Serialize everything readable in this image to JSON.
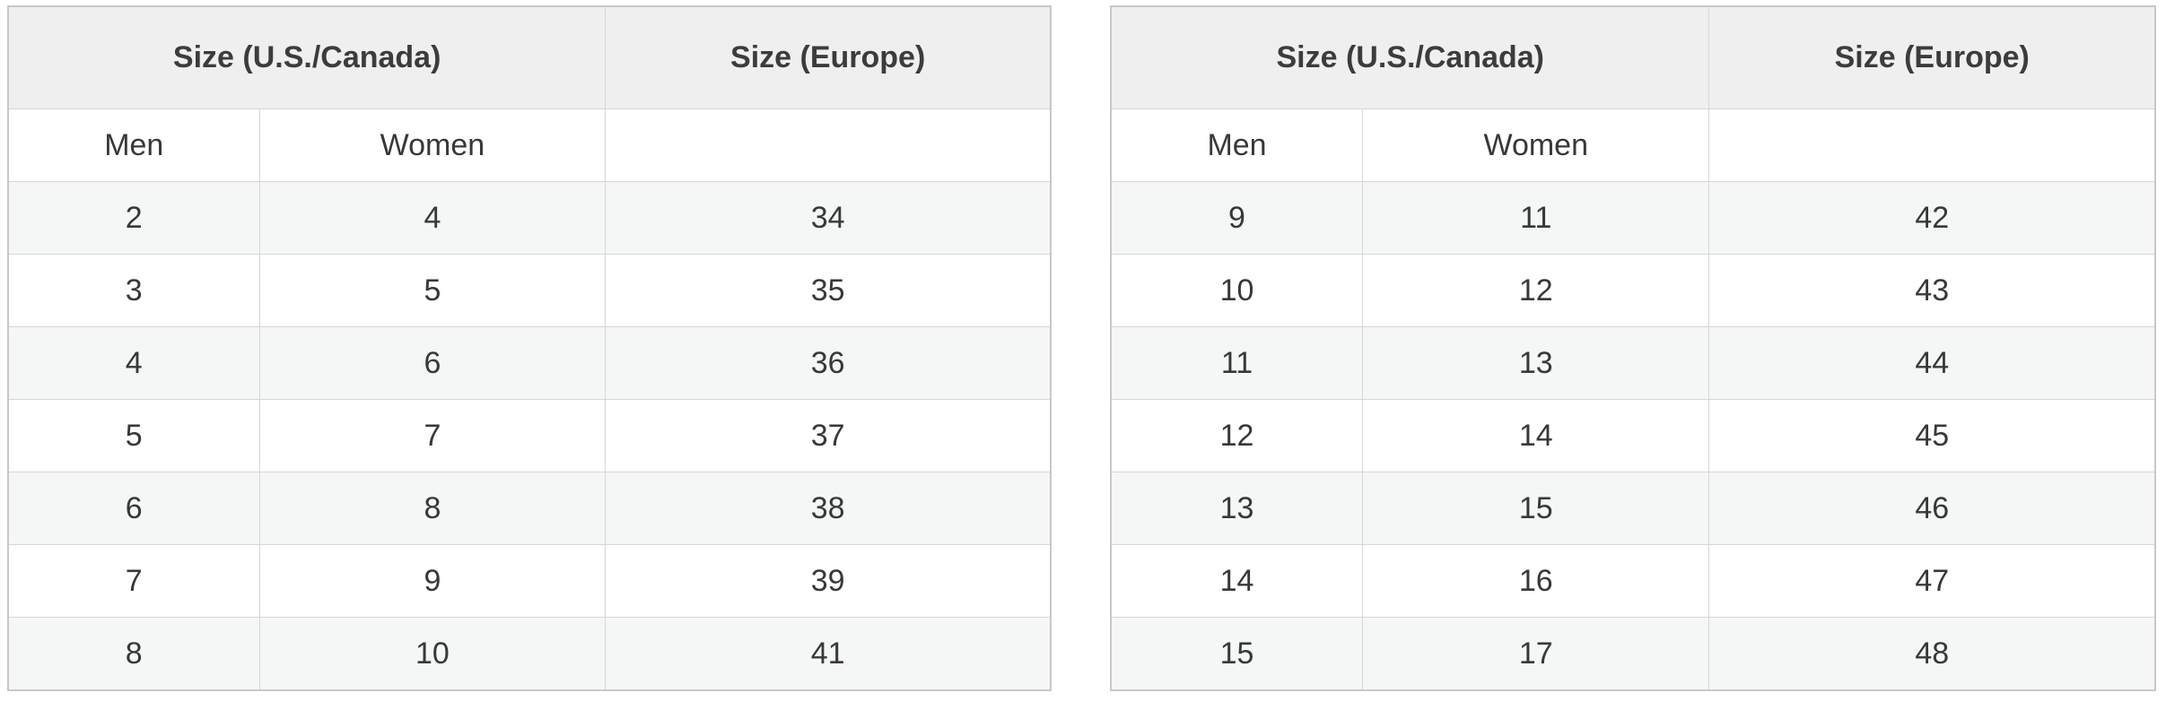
{
  "colors": {
    "page_background": "#ffffff",
    "header_background": "#efefef",
    "stripe_row_background": "#f5f6f6",
    "outer_border": "#c8c8c8",
    "inner_border": "#d6d6d6",
    "text": "#37383a"
  },
  "tables": [
    {
      "header": {
        "us_canada": "Size (U.S./Canada)",
        "europe": "Size (Europe)"
      },
      "subheader": {
        "men": "Men",
        "women": "Women",
        "europe": ""
      },
      "rows": [
        {
          "men": "2",
          "women": "4",
          "europe": "34"
        },
        {
          "men": "3",
          "women": "5",
          "europe": "35"
        },
        {
          "men": "4",
          "women": "6",
          "europe": "36"
        },
        {
          "men": "5",
          "women": "7",
          "europe": "37"
        },
        {
          "men": "6",
          "women": "8",
          "europe": "38"
        },
        {
          "men": "7",
          "women": "9",
          "europe": "39"
        },
        {
          "men": "8",
          "women": "10",
          "europe": "41"
        }
      ]
    },
    {
      "header": {
        "us_canada": "Size (U.S./Canada)",
        "europe": "Size (Europe)"
      },
      "subheader": {
        "men": "Men",
        "women": "Women",
        "europe": ""
      },
      "rows": [
        {
          "men": "9",
          "women": "11",
          "europe": "42"
        },
        {
          "men": "10",
          "women": "12",
          "europe": "43"
        },
        {
          "men": "11",
          "women": "13",
          "europe": "44"
        },
        {
          "men": "12",
          "women": "14",
          "europe": "45"
        },
        {
          "men": "13",
          "women": "15",
          "europe": "46"
        },
        {
          "men": "14",
          "women": "16",
          "europe": "47"
        },
        {
          "men": "15",
          "women": "17",
          "europe": "48"
        }
      ]
    }
  ],
  "chart_data": [
    {
      "type": "table",
      "title": "Shoe size conversion (left table)",
      "columns": [
        "Size (U.S./Canada) Men",
        "Size (U.S./Canada) Women",
        "Size (Europe)"
      ],
      "rows": [
        [
          2,
          4,
          34
        ],
        [
          3,
          5,
          35
        ],
        [
          4,
          6,
          36
        ],
        [
          5,
          7,
          37
        ],
        [
          6,
          8,
          38
        ],
        [
          7,
          9,
          39
        ],
        [
          8,
          10,
          41
        ]
      ]
    },
    {
      "type": "table",
      "title": "Shoe size conversion (right table)",
      "columns": [
        "Size (U.S./Canada) Men",
        "Size (U.S./Canada) Women",
        "Size (Europe)"
      ],
      "rows": [
        [
          9,
          11,
          42
        ],
        [
          10,
          12,
          43
        ],
        [
          11,
          13,
          44
        ],
        [
          12,
          14,
          45
        ],
        [
          13,
          15,
          46
        ],
        [
          14,
          16,
          47
        ],
        [
          15,
          17,
          48
        ]
      ]
    }
  ]
}
